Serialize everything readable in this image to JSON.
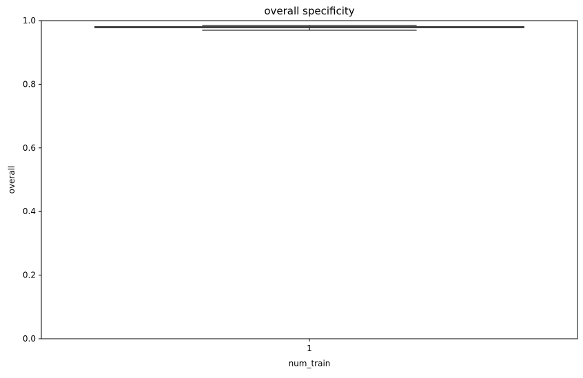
{
  "chart_data": {
    "type": "box",
    "title": "overall specificity",
    "xlabel": "num_train",
    "ylabel": "overall",
    "categories": [
      "1"
    ],
    "ylim": [
      0.0,
      1.0
    ],
    "yticks": [
      "0.0",
      "0.2",
      "0.4",
      "0.6",
      "0.8",
      "1.0"
    ],
    "grid": false,
    "boxes": [
      {
        "category": "1",
        "whisker_low": 0.97,
        "q1": 0.978,
        "median": 0.979,
        "q3": 0.981,
        "whisker_high": 0.985
      }
    ],
    "colors": {
      "box_edge": "#3f3f3f",
      "box_fill": "#ffffff",
      "axis": "#000000"
    }
  }
}
